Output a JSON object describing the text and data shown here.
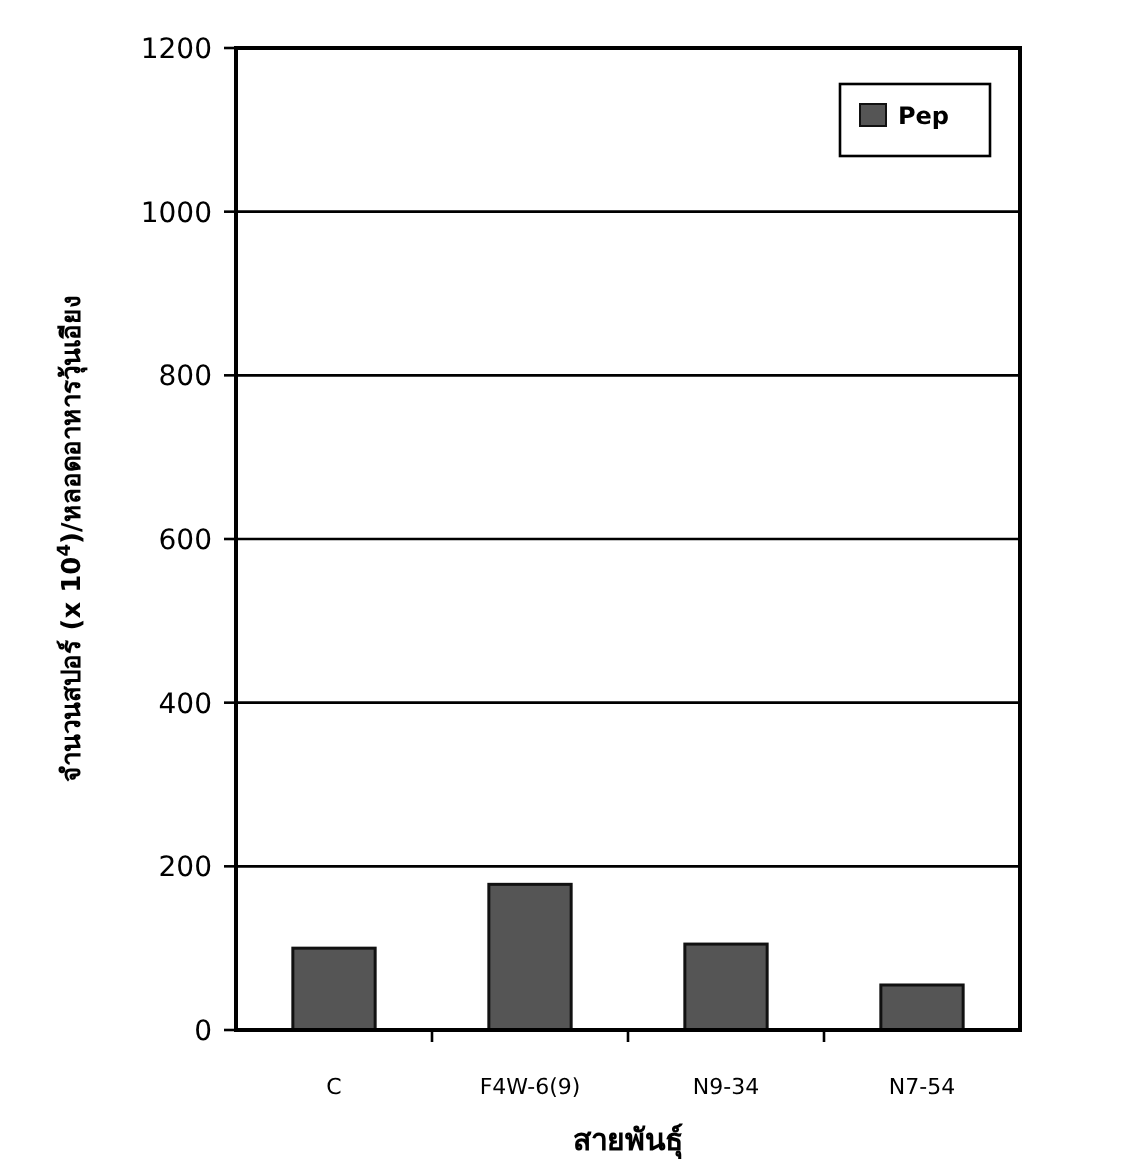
{
  "chart_data": {
    "type": "bar",
    "xlabel": "สายพันธุ์",
    "ylabel": "จำนวนสปอร์ (x 10$^{4}$)/หลอดอาหารวุ้นเอียง",
    "categories": [
      "C",
      "F4W-6(9)",
      "N9-34",
      "N7-54"
    ],
    "series": [
      {
        "name": "Pep",
        "color": "#555555",
        "values": [
          100,
          178,
          105,
          55
        ]
      }
    ],
    "ylim": [
      0,
      1200
    ],
    "yticks": [
      0,
      200,
      400,
      600,
      800,
      1000,
      1200
    ],
    "grid": "y",
    "legend": "top right"
  }
}
